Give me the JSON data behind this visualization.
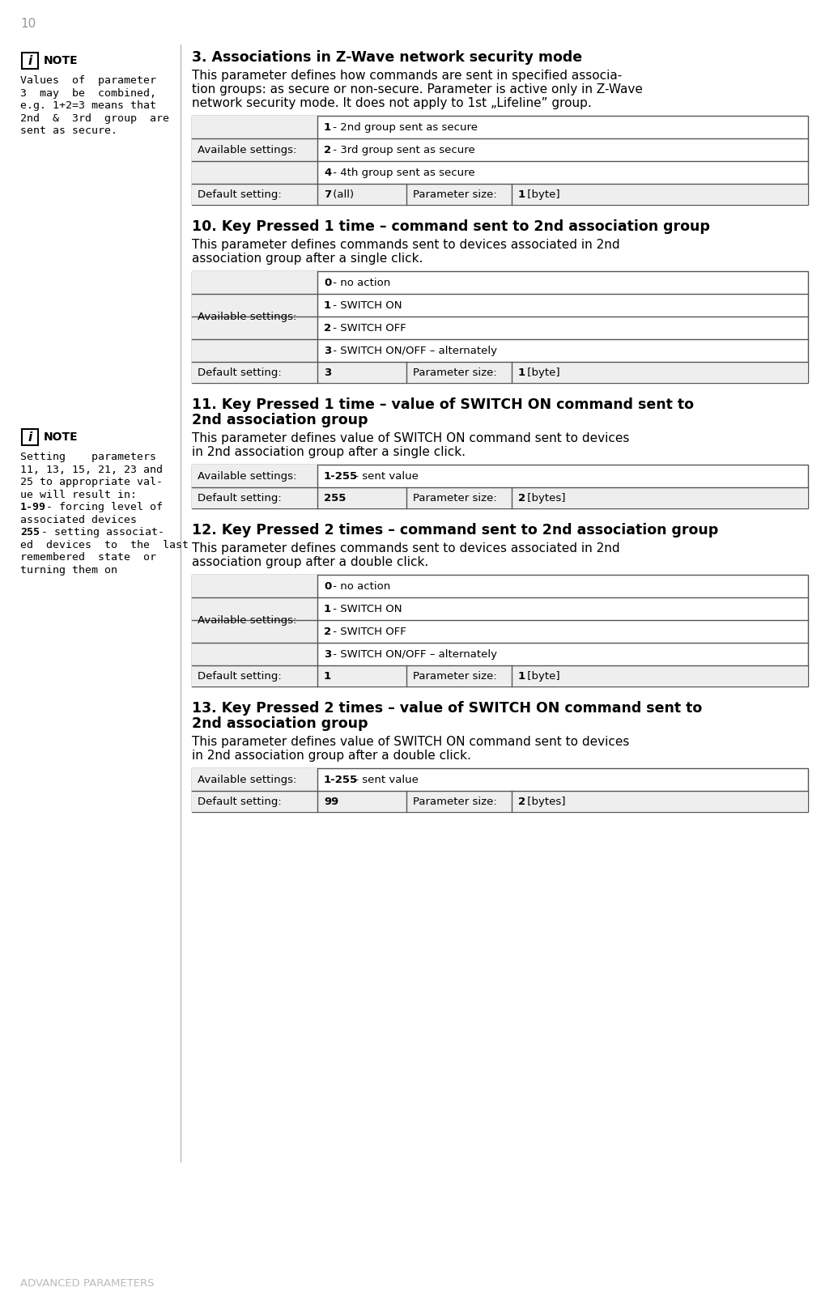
{
  "page_number": "10",
  "footer_text": "ADVANCED PARAMETERS",
  "bg_color": "#ffffff",
  "note1": {
    "lines": [
      "Values  of  parameter",
      "3  may  be  combined,",
      "e.g. 1+2=3 means that",
      "2nd  &  3rd  group  are",
      "sent as secure."
    ]
  },
  "note2": {
    "lines_plain": [
      "Setting    parameters",
      "11, 13, 15, 21, 23 and",
      "25 to appropriate val-",
      "ue will result in:"
    ],
    "lines_bold_label": [
      "1-99",
      "255"
    ],
    "lines_bold": [
      [
        "1-99",
        " - forcing level of"
      ],
      [
        "",
        "associated devices"
      ],
      [
        "255",
        " - setting associat-"
      ],
      [
        "",
        "ed  devices  to  the  last"
      ],
      [
        "",
        "remembered  state  or"
      ],
      [
        "",
        "turning them on"
      ]
    ]
  },
  "sections": [
    {
      "id": 3,
      "title_lines": [
        "3. Associations in Z-Wave network security mode"
      ],
      "body_lines": [
        "This parameter defines how commands are sent in specified associa-",
        "tion groups: as secure or non-secure. Parameter is active only in Z-Wave",
        "network security mode. It does not apply to 1st „Lifeline” group."
      ],
      "available_settings": [
        [
          "1",
          " - 2nd group sent as secure"
        ],
        [
          "2",
          " - 3rd group sent as secure"
        ],
        [
          "4",
          " - 4th group sent as secure"
        ]
      ],
      "available_label": "Available settings:",
      "default_label": "Default setting:",
      "default_value": "7",
      "default_value_suffix": " (all)",
      "param_size_label": "Parameter size:",
      "param_size_value": "1",
      "param_size_suffix": " [byte]"
    },
    {
      "id": 10,
      "title_lines": [
        "10. Key Pressed 1 time – command sent to 2nd association group"
      ],
      "body_lines": [
        "This parameter defines commands sent to devices associated in 2nd",
        "association group after a single click."
      ],
      "available_settings": [
        [
          "0",
          " - no action"
        ],
        [
          "1",
          " - SWITCH ON"
        ],
        [
          "2",
          " - SWITCH OFF"
        ],
        [
          "3",
          " - SWITCH ON/OFF – alternately"
        ]
      ],
      "available_label": "Available settings:",
      "default_label": "Default setting:",
      "default_value": "3",
      "default_value_suffix": "",
      "param_size_label": "Parameter size:",
      "param_size_value": "1",
      "param_size_suffix": " [byte]"
    },
    {
      "id": 11,
      "title_lines": [
        "11. Key Pressed 1 time – value of SWITCH ON command sent to",
        "2nd association group"
      ],
      "body_lines": [
        "This parameter defines value of SWITCH ON command sent to devices",
        "in 2nd association group after a single click."
      ],
      "available_settings": [
        [
          "1-255",
          " - sent value"
        ]
      ],
      "available_label": "Available settings:",
      "default_label": "Default setting:",
      "default_value": "255",
      "default_value_suffix": "",
      "param_size_label": "Parameter size:",
      "param_size_value": "2",
      "param_size_suffix": " [bytes]"
    },
    {
      "id": 12,
      "title_lines": [
        "12. Key Pressed 2 times – command sent to 2nd association group"
      ],
      "body_lines": [
        "This parameter defines commands sent to devices associated in 2nd",
        "association group after a double click."
      ],
      "available_settings": [
        [
          "0",
          " - no action"
        ],
        [
          "1",
          " - SWITCH ON"
        ],
        [
          "2",
          " - SWITCH OFF"
        ],
        [
          "3",
          " - SWITCH ON/OFF – alternately"
        ]
      ],
      "available_label": "Available settings:",
      "default_label": "Default setting:",
      "default_value": "1",
      "default_value_suffix": "",
      "param_size_label": "Parameter size:",
      "param_size_value": "1",
      "param_size_suffix": " [byte]"
    },
    {
      "id": 13,
      "title_lines": [
        "13. Key Pressed 2 times – value of SWITCH ON command sent to",
        "2nd association group"
      ],
      "body_lines": [
        "This parameter defines value of SWITCH ON command sent to devices",
        "in 2nd association group after a double click."
      ],
      "available_settings": [
        [
          "1-255",
          " - sent value"
        ]
      ],
      "available_label": "Available settings:",
      "default_label": "Default setting:",
      "default_value": "99",
      "default_value_suffix": "",
      "param_size_label": "Parameter size:",
      "param_size_value": "2",
      "param_size_suffix": " [bytes]"
    }
  ]
}
